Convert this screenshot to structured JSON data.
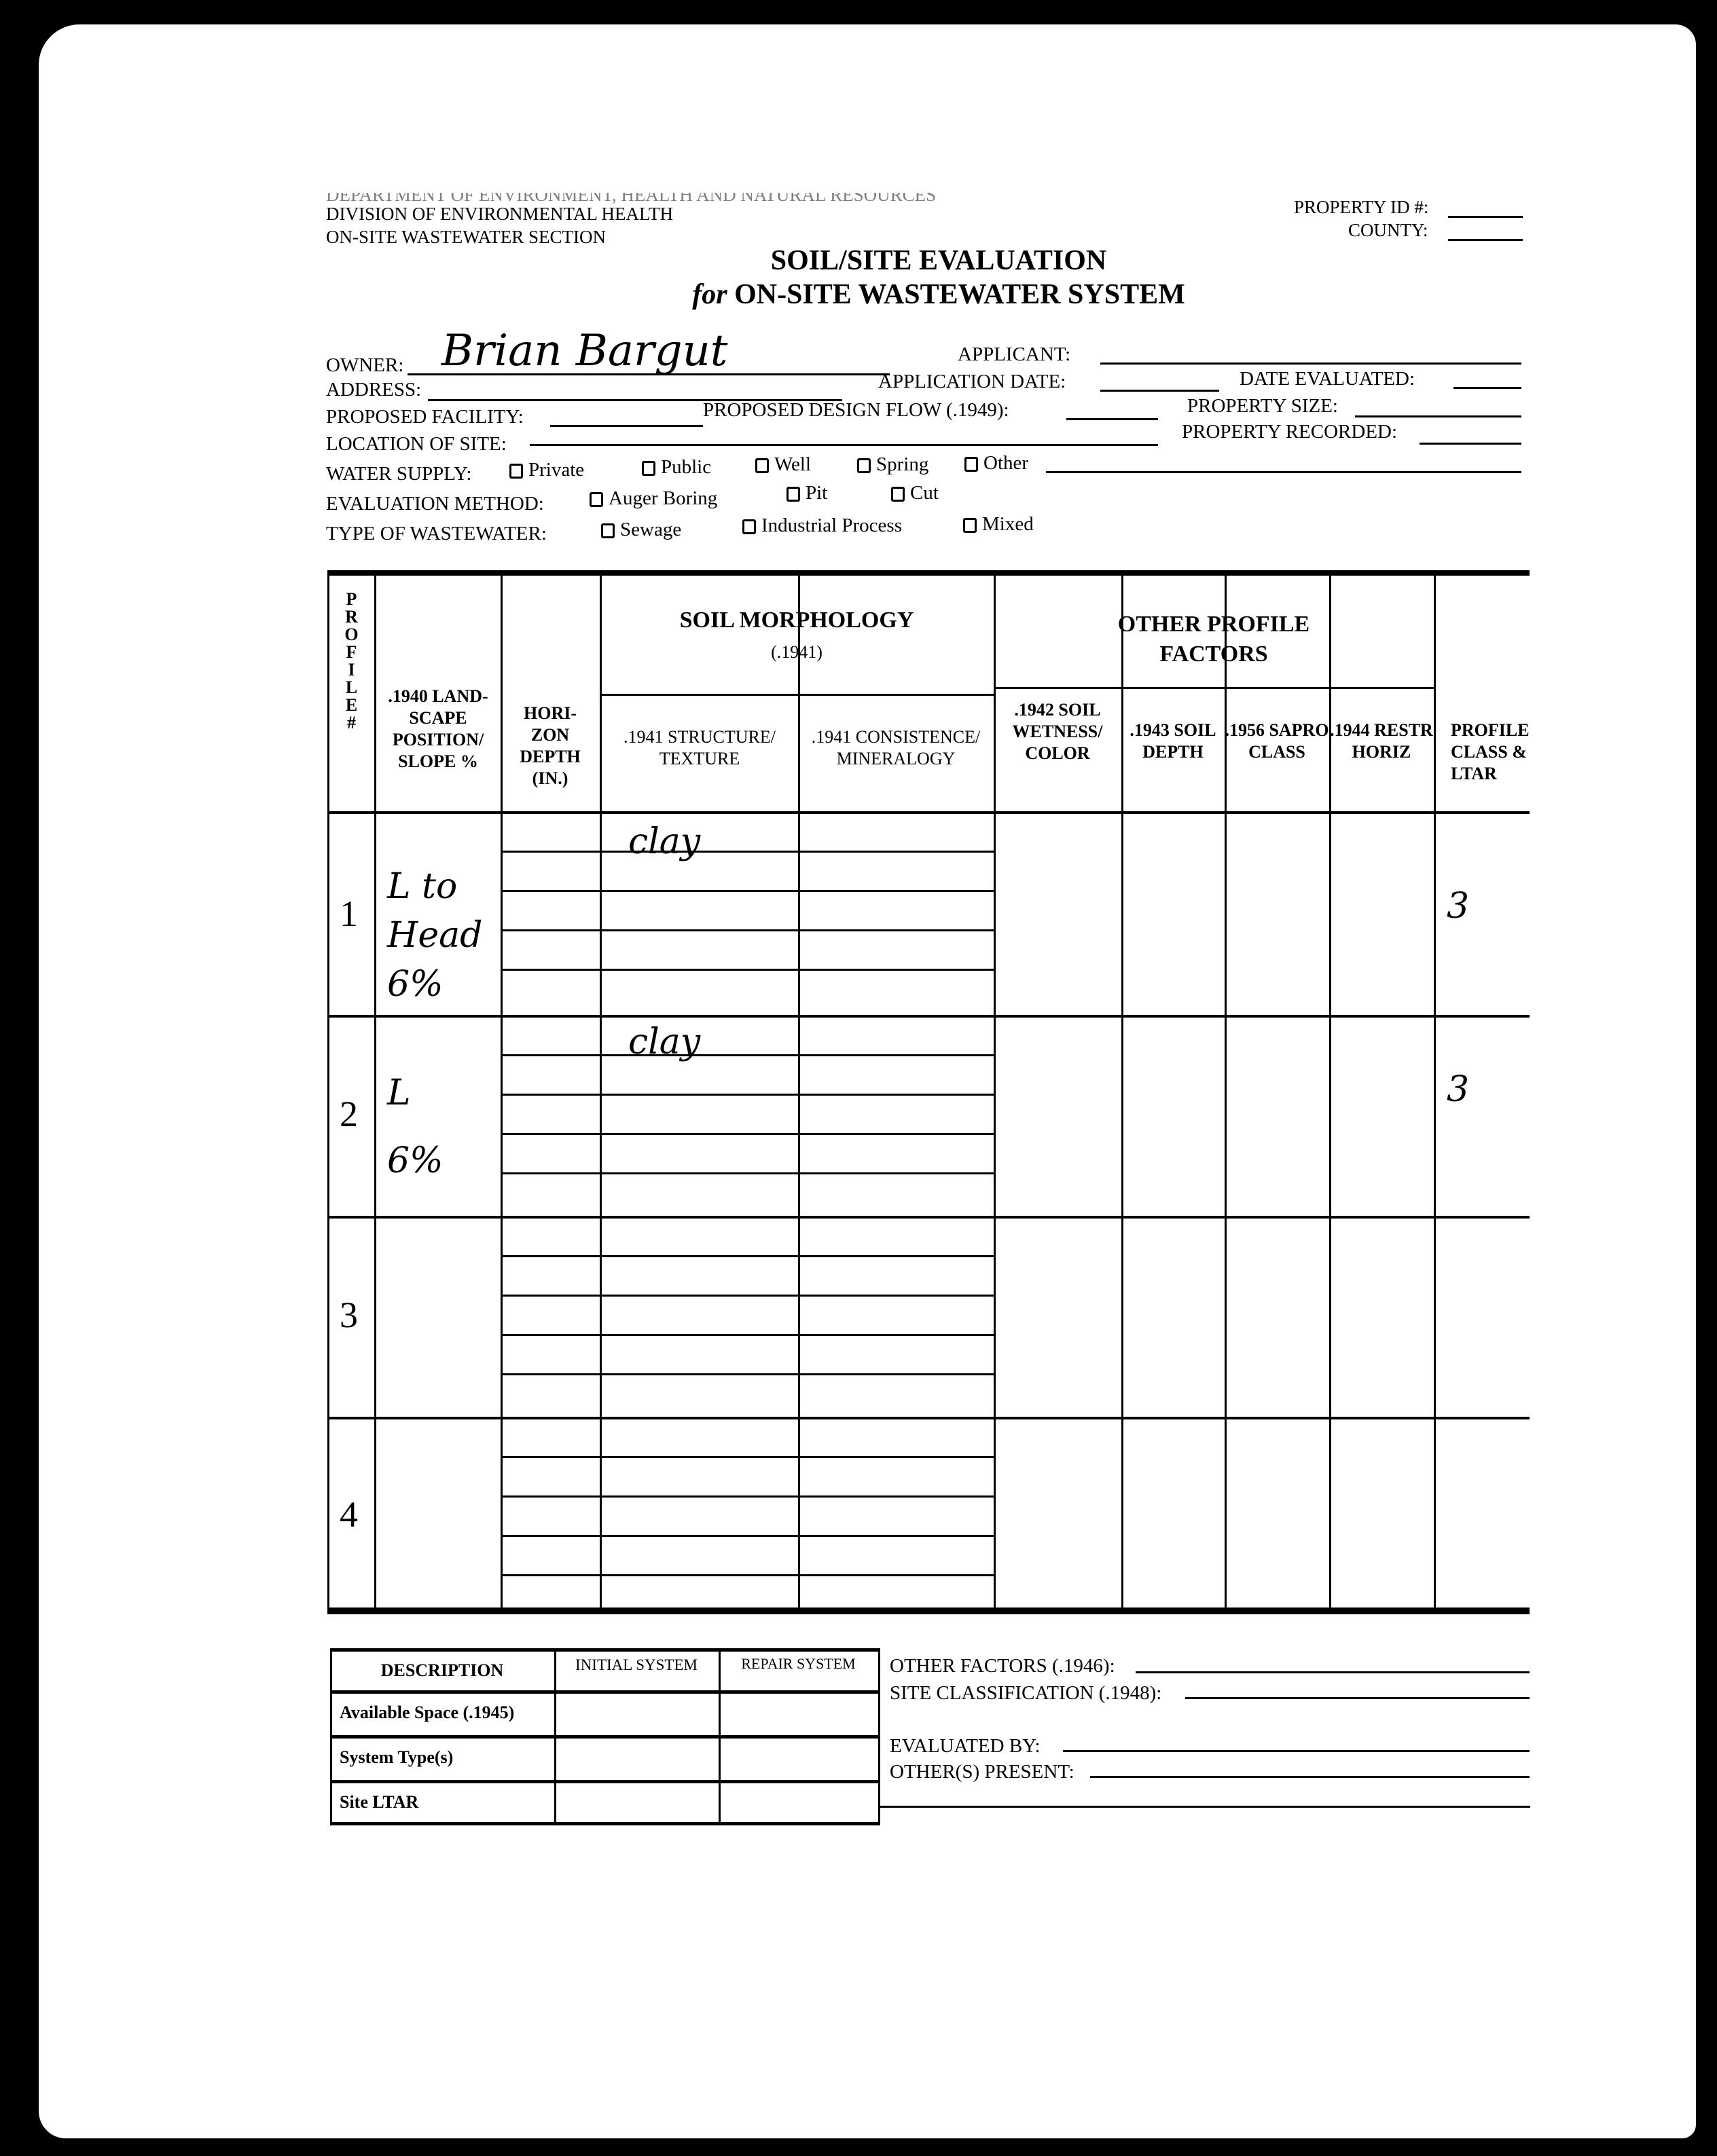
{
  "header": {
    "department": "DEPARTMENT OF ENVIRONMENT, HEALTH AND NATURAL RESOURCES",
    "division": "DIVISION OF ENVIRONMENTAL HEALTH",
    "section": "ON-SITE WASTEWATER SECTION",
    "property_id_label": "PROPERTY ID #:",
    "county_label": "COUNTY:"
  },
  "title": {
    "line1": "SOIL/SITE EVALUATION",
    "line2_prefix": "for",
    "line2": "ON-SITE WASTEWATER SYSTEM"
  },
  "fields": {
    "owner_label": "OWNER:",
    "owner_value": "Brian Bargut",
    "applicant_label": "APPLICANT:",
    "address_label": "ADDRESS:",
    "application_date_label": "APPLICATION DATE:",
    "date_evaluated_label": "DATE EVALUATED:",
    "proposed_facility_label": "PROPOSED FACILITY:",
    "design_flow_label": "PROPOSED DESIGN FLOW (.1949):",
    "property_size_label": "PROPERTY SIZE:",
    "location_label": "LOCATION OF SITE:",
    "property_recorded_label": "PROPERTY RECORDED:"
  },
  "water_supply": {
    "label": "WATER SUPPLY:",
    "options": [
      "Private",
      "Public",
      "Well",
      "Spring",
      "Other"
    ]
  },
  "evaluation_method": {
    "label": "EVALUATION METHOD:",
    "options": [
      "Auger Boring",
      "Pit",
      "Cut"
    ]
  },
  "wastewater_type": {
    "label": "TYPE OF WASTEWATER:",
    "options": [
      "Sewage",
      "Industrial Process",
      "Mixed"
    ]
  },
  "table": {
    "profile_header": "P R O F I L E #",
    "landscape_header": ".1940 LAND- SCAPE POSITION/ SLOPE %",
    "horizon_header": "HORI- ZON DEPTH (IN.)",
    "soil_morphology": "SOIL MORPHOLOGY",
    "soil_morphology_code": "(.1941)",
    "structure_header": ".1941 STRUCTURE/ TEXTURE",
    "consistence_header": ".1941 CONSISTENCE/ MINERALOGY",
    "other_factors": "OTHER PROFILE FACTORS",
    "wetness_header": ".1942 SOIL WETNESS/ COLOR",
    "depth_header": ".1943 SOIL DEPTH",
    "sapro_header": ".1956 SAPRO CLASS",
    "restr_header": ".1944 RESTR HORIZ",
    "class_header": "PROFILE CLASS & LTAR",
    "rows": [
      {
        "profile": "1",
        "landscape": "L to Head 6%",
        "texture": "clay",
        "class": "3"
      },
      {
        "profile": "2",
        "landscape": "L 6%",
        "texture": "clay",
        "class": "3"
      },
      {
        "profile": "3"
      },
      {
        "profile": "4"
      }
    ]
  },
  "summary": {
    "headers": [
      "DESCRIPTION",
      "INITIAL SYSTEM",
      "REPAIR SYSTEM"
    ],
    "rows": [
      "Available Space (.1945)",
      "System Type(s)",
      "Site LTAR"
    ]
  },
  "footer": {
    "other_factors": "OTHER FACTORS (.1946):",
    "site_classification": "SITE CLASSIFICATION (.1948):",
    "evaluated_by": "EVALUATED BY:",
    "others_present": "OTHER(S) PRESENT:"
  }
}
